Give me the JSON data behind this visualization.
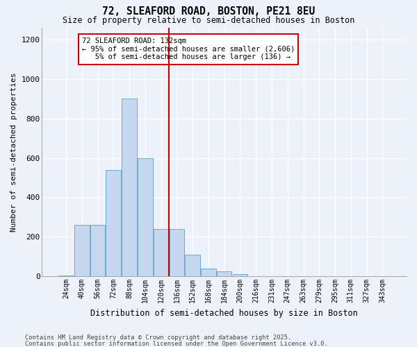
{
  "title1": "72, SLEAFORD ROAD, BOSTON, PE21 8EU",
  "title2": "Size of property relative to semi-detached houses in Boston",
  "xlabel": "Distribution of semi-detached houses by size in Boston",
  "ylabel": "Number of semi-detached properties",
  "categories": [
    "24sqm",
    "40sqm",
    "56sqm",
    "72sqm",
    "88sqm",
    "104sqm",
    "120sqm",
    "136sqm",
    "152sqm",
    "168sqm",
    "184sqm",
    "200sqm",
    "216sqm",
    "231sqm",
    "247sqm",
    "263sqm",
    "279sqm",
    "295sqm",
    "311sqm",
    "327sqm",
    "343sqm"
  ],
  "values": [
    5,
    260,
    260,
    540,
    900,
    600,
    240,
    240,
    110,
    40,
    25,
    10,
    2,
    0,
    0,
    0,
    0,
    0,
    0,
    0,
    0
  ],
  "bar_color": "#c5d8f0",
  "bar_edge_color": "#6aaad4",
  "vline_x_idx": 7,
  "vline_color": "#cc0000",
  "annotation_text": "72 SLEAFORD ROAD: 132sqm\n← 95% of semi-detached houses are smaller (2,606)\n   5% of semi-detached houses are larger (136) →",
  "annotation_box_color": "#ffffff",
  "annotation_box_edge": "#cc0000",
  "ylim": [
    0,
    1260
  ],
  "yticks": [
    0,
    200,
    400,
    600,
    800,
    1000,
    1200
  ],
  "footnote1": "Contains HM Land Registry data © Crown copyright and database right 2025.",
  "footnote2": "Contains public sector information licensed under the Open Government Licence v3.0.",
  "bg_color": "#edf2fa",
  "grid_color": "#ffffff"
}
